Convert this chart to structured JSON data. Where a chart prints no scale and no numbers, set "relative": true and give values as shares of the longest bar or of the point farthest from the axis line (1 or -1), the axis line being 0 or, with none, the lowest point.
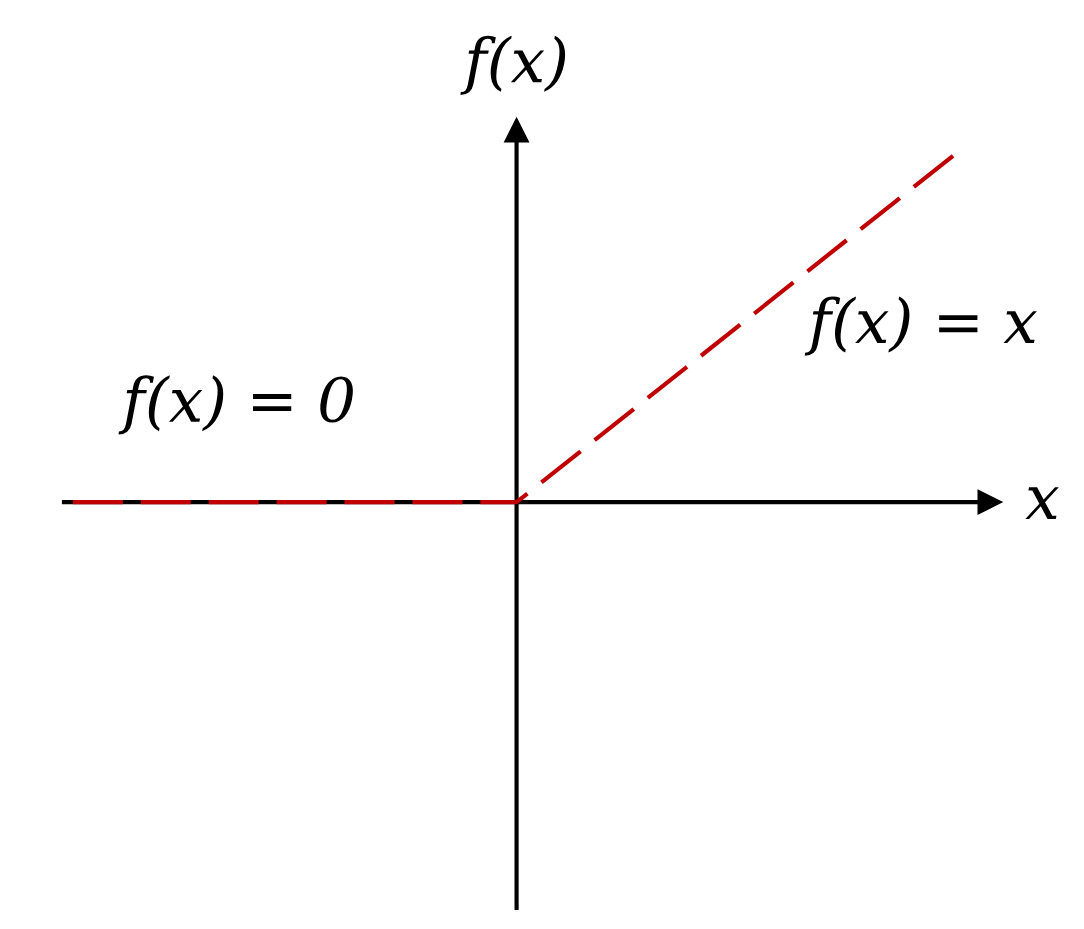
{
  "chart_data": {
    "type": "line",
    "relative": true,
    "categories": [
      null,
      null,
      null
    ],
    "series": [
      {
        "color": "#c00000",
        "values": [
          0,
          0,
          1
        ]
      }
    ],
    "line_style": "dashed",
    "xlabel": "x",
    "ylabel": "f(x)",
    "annotations": [
      "f(x) = 0",
      "f(x) = x"
    ]
  }
}
